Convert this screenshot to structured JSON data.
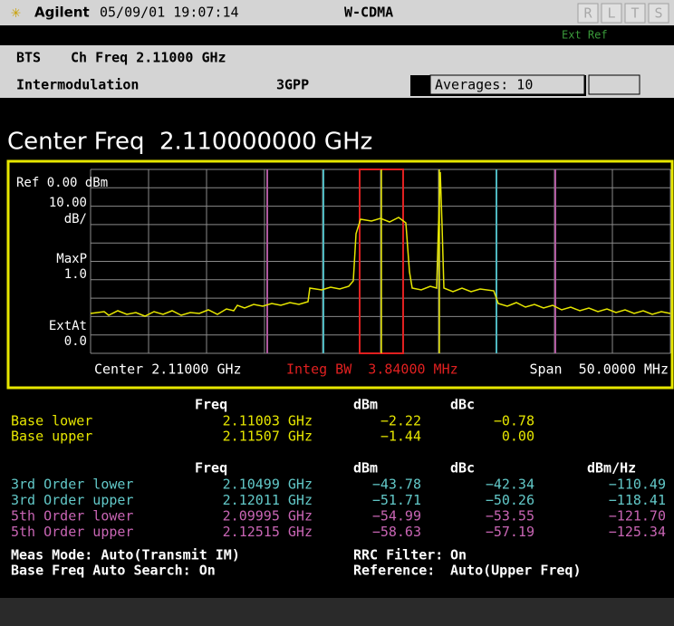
{
  "header": {
    "brand": "Agilent",
    "datetime": "05/09/01 19:07:14",
    "mode": "W-CDMA",
    "indicators": [
      "R",
      "L",
      "T",
      "S"
    ],
    "ext_ref": "Ext Ref"
  },
  "settings": {
    "device": "BTS",
    "ch_freq": "Ch Freq 2.11000 GHz",
    "measurement": "Intermodulation",
    "standard": "3GPP",
    "averages": "Averages: 10"
  },
  "center_freq": "Center Freq  2.110000000 GHz",
  "graph": {
    "ref": "Ref 0.00 dBm",
    "scale": [
      "10.00",
      "dB/"
    ],
    "detector": [
      "MaxP",
      "1.0"
    ],
    "ext_atten": [
      "ExtAt",
      "0.0"
    ],
    "center": "Center 2.11000 GHz",
    "integ_bw": "Integ BW  3.84000 MHz",
    "span": "Span  50.0000 MHz"
  },
  "base_table": {
    "headers": [
      "Freq",
      "dBm",
      "dBc"
    ],
    "rows": [
      [
        "Base lower",
        "2.11003 GHz",
        "−2.22",
        "−0.78"
      ],
      [
        "Base upper",
        "2.11507 GHz",
        "−1.44",
        "0.00"
      ]
    ]
  },
  "im_table": {
    "headers": [
      "Freq",
      "dBm",
      "dBc",
      "dBm/Hz"
    ],
    "rows": [
      [
        "3rd Order lower",
        "2.10499 GHz",
        "−43.78",
        "−42.34",
        "−110.49"
      ],
      [
        "3rd Order upper",
        "2.12011 GHz",
        "−51.71",
        "−50.26",
        "−118.41"
      ],
      [
        "5th Order lower",
        "2.09995 GHz",
        "−54.99",
        "−53.55",
        "−121.70"
      ],
      [
        "5th Order upper",
        "2.12515 GHz",
        "−58.63",
        "−57.19",
        "−125.34"
      ]
    ]
  },
  "footer": {
    "meas_mode": "Meas Mode: Auto(Transmit IM)",
    "auto_search": "Base Freq Auto Search: On",
    "rrc_label": "RRC Filter:",
    "rrc_value": "On",
    "reference_label": "Reference:",
    "reference_value": "Auto(Upper Freq)"
  }
}
